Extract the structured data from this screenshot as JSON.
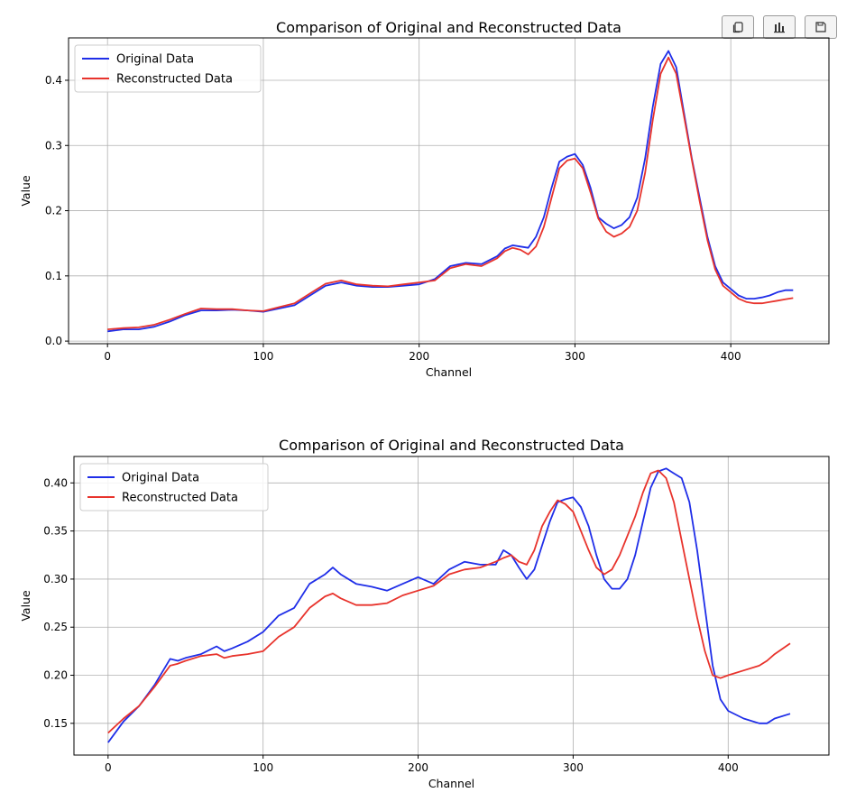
{
  "toolbar": {
    "buttons": [
      {
        "name": "copy-button",
        "icon": "copy-icon"
      },
      {
        "name": "chart-button",
        "icon": "bar-chart-icon"
      },
      {
        "name": "save-button",
        "icon": "save-icon"
      }
    ]
  },
  "chart_data": [
    {
      "type": "line",
      "title": "Comparison of Original and Reconstructed Data",
      "xlabel": "Channel",
      "ylabel": "Value",
      "xlim": [
        -25,
        463
      ],
      "ylim": [
        -0.004,
        0.465
      ],
      "xticks": [
        0,
        100,
        200,
        300,
        400
      ],
      "xtick_labels": [
        "0",
        "100",
        "200",
        "300",
        "400"
      ],
      "yticks": [
        0.0,
        0.1,
        0.2,
        0.3,
        0.4
      ],
      "ytick_labels": [
        "0.0",
        "0.1",
        "0.2",
        "0.3",
        "0.4"
      ],
      "grid": true,
      "legend": "upper left",
      "series": [
        {
          "name": "Original Data",
          "color": "#1f2ee8",
          "x": [
            0,
            10,
            20,
            30,
            40,
            50,
            60,
            70,
            80,
            90,
            100,
            110,
            120,
            130,
            140,
            150,
            160,
            170,
            180,
            190,
            200,
            210,
            220,
            230,
            240,
            250,
            255,
            260,
            265,
            270,
            275,
            280,
            285,
            290,
            295,
            300,
            305,
            310,
            315,
            320,
            325,
            330,
            335,
            340,
            345,
            350,
            355,
            360,
            365,
            370,
            375,
            380,
            385,
            390,
            395,
            400,
            405,
            410,
            415,
            420,
            425,
            430,
            435,
            440
          ],
          "y": [
            0.015,
            0.018,
            0.018,
            0.022,
            0.03,
            0.04,
            0.047,
            0.047,
            0.048,
            0.047,
            0.045,
            0.05,
            0.055,
            0.07,
            0.085,
            0.09,
            0.085,
            0.083,
            0.083,
            0.085,
            0.087,
            0.095,
            0.115,
            0.12,
            0.118,
            0.13,
            0.142,
            0.147,
            0.145,
            0.143,
            0.16,
            0.19,
            0.235,
            0.275,
            0.283,
            0.287,
            0.27,
            0.235,
            0.19,
            0.18,
            0.173,
            0.178,
            0.19,
            0.22,
            0.28,
            0.36,
            0.425,
            0.445,
            0.42,
            0.35,
            0.28,
            0.22,
            0.16,
            0.115,
            0.09,
            0.08,
            0.07,
            0.065,
            0.065,
            0.067,
            0.07,
            0.075,
            0.078,
            0.078
          ]
        },
        {
          "name": "Reconstructed Data",
          "color": "#e8332c",
          "x": [
            0,
            10,
            20,
            30,
            40,
            50,
            60,
            70,
            80,
            90,
            100,
            110,
            120,
            130,
            140,
            150,
            160,
            170,
            180,
            190,
            200,
            210,
            220,
            230,
            240,
            250,
            255,
            260,
            265,
            270,
            275,
            280,
            285,
            290,
            295,
            300,
            305,
            310,
            315,
            320,
            325,
            330,
            335,
            340,
            345,
            350,
            355,
            360,
            365,
            370,
            375,
            380,
            385,
            390,
            395,
            400,
            405,
            410,
            415,
            420,
            425,
            430,
            435,
            440
          ],
          "y": [
            0.018,
            0.02,
            0.021,
            0.025,
            0.033,
            0.042,
            0.05,
            0.049,
            0.049,
            0.047,
            0.046,
            0.052,
            0.058,
            0.073,
            0.088,
            0.093,
            0.087,
            0.085,
            0.084,
            0.087,
            0.09,
            0.093,
            0.112,
            0.118,
            0.115,
            0.127,
            0.138,
            0.143,
            0.14,
            0.133,
            0.145,
            0.175,
            0.22,
            0.265,
            0.277,
            0.28,
            0.265,
            0.228,
            0.188,
            0.168,
            0.16,
            0.165,
            0.175,
            0.2,
            0.258,
            0.34,
            0.41,
            0.435,
            0.41,
            0.345,
            0.278,
            0.215,
            0.155,
            0.11,
            0.085,
            0.075,
            0.065,
            0.06,
            0.058,
            0.058,
            0.06,
            0.062,
            0.064,
            0.066
          ]
        }
      ]
    },
    {
      "type": "line",
      "title": "Comparison of Original and Reconstructed Data",
      "xlabel": "Channel",
      "ylabel": "Value",
      "xlim": [
        -22,
        465
      ],
      "ylim": [
        0.117,
        0.4275
      ],
      "xticks": [
        0,
        100,
        200,
        300,
        400
      ],
      "xtick_labels": [
        "0",
        "100",
        "200",
        "300",
        "400"
      ],
      "yticks": [
        0.15,
        0.2,
        0.25,
        0.3,
        0.35,
        0.4
      ],
      "ytick_labels": [
        "0.15",
        "0.20",
        "0.25",
        "0.30",
        "0.35",
        "0.40"
      ],
      "grid": true,
      "legend": "upper left",
      "series": [
        {
          "name": "Original Data",
          "color": "#1f2ee8",
          "x": [
            0,
            10,
            20,
            30,
            40,
            45,
            50,
            60,
            70,
            75,
            80,
            90,
            100,
            110,
            120,
            130,
            140,
            145,
            150,
            160,
            170,
            180,
            190,
            200,
            210,
            220,
            230,
            240,
            250,
            255,
            260,
            265,
            270,
            275,
            280,
            285,
            290,
            295,
            300,
            305,
            310,
            315,
            320,
            325,
            330,
            335,
            340,
            345,
            350,
            355,
            360,
            365,
            370,
            375,
            380,
            385,
            390,
            395,
            400,
            410,
            420,
            425,
            430,
            440
          ],
          "y": [
            0.13,
            0.152,
            0.168,
            0.19,
            0.217,
            0.215,
            0.218,
            0.222,
            0.23,
            0.225,
            0.228,
            0.235,
            0.245,
            0.262,
            0.27,
            0.295,
            0.305,
            0.312,
            0.305,
            0.295,
            0.292,
            0.288,
            0.295,
            0.302,
            0.295,
            0.31,
            0.318,
            0.315,
            0.315,
            0.33,
            0.325,
            0.312,
            0.3,
            0.31,
            0.335,
            0.36,
            0.38,
            0.383,
            0.385,
            0.375,
            0.355,
            0.325,
            0.3,
            0.29,
            0.29,
            0.3,
            0.325,
            0.36,
            0.395,
            0.412,
            0.415,
            0.41,
            0.405,
            0.38,
            0.33,
            0.27,
            0.21,
            0.175,
            0.163,
            0.155,
            0.15,
            0.15,
            0.155,
            0.16
          ]
        },
        {
          "name": "Reconstructed Data",
          "color": "#e8332c",
          "x": [
            0,
            10,
            20,
            30,
            40,
            45,
            50,
            60,
            70,
            75,
            80,
            90,
            100,
            110,
            120,
            130,
            140,
            145,
            150,
            160,
            170,
            180,
            190,
            200,
            210,
            220,
            230,
            240,
            250,
            255,
            260,
            265,
            270,
            275,
            280,
            285,
            290,
            295,
            300,
            305,
            310,
            315,
            320,
            325,
            330,
            335,
            340,
            345,
            350,
            355,
            360,
            365,
            370,
            375,
            380,
            385,
            390,
            395,
            400,
            410,
            420,
            425,
            430,
            440
          ],
          "y": [
            0.14,
            0.155,
            0.168,
            0.188,
            0.21,
            0.212,
            0.215,
            0.22,
            0.222,
            0.218,
            0.22,
            0.222,
            0.225,
            0.24,
            0.25,
            0.27,
            0.282,
            0.285,
            0.28,
            0.273,
            0.273,
            0.275,
            0.283,
            0.288,
            0.293,
            0.305,
            0.31,
            0.312,
            0.318,
            0.322,
            0.325,
            0.318,
            0.315,
            0.33,
            0.355,
            0.37,
            0.382,
            0.378,
            0.37,
            0.35,
            0.33,
            0.312,
            0.305,
            0.31,
            0.325,
            0.345,
            0.365,
            0.39,
            0.41,
            0.413,
            0.405,
            0.38,
            0.34,
            0.3,
            0.26,
            0.225,
            0.2,
            0.197,
            0.2,
            0.205,
            0.21,
            0.215,
            0.222,
            0.233
          ]
        }
      ]
    }
  ]
}
